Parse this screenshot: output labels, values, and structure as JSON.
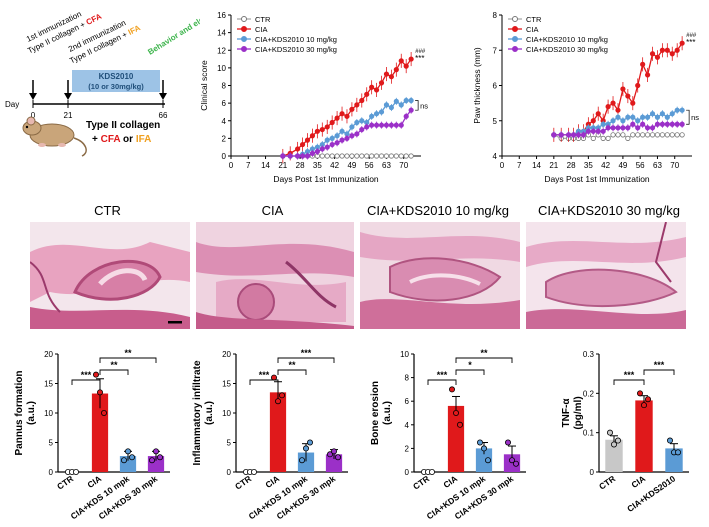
{
  "timeline": {
    "imm1": "1st immunization",
    "imm1_detail": "Type II collagen + ",
    "cfa": "CFA",
    "imm2": "2nd immunization",
    "imm2_detail": "Type II collagen + ",
    "ifa": "IFA",
    "behavior": "Behavior and electrophysiology",
    "drug": "KDS2010",
    "drug_dose": "(10 or 30mg/kg)",
    "day_label": "Day",
    "days": [
      "0",
      "21",
      "66"
    ],
    "mouse_text": "Type II collagen",
    "plus1": "+ ",
    "or_text": " or ",
    "cfa2": "CFA",
    "ifa2": "IFA"
  },
  "histology": {
    "titles": [
      "CTR",
      "CIA",
      "CIA+KDS2010 10 mg/kg",
      "CIA+KDS2010 30 mg/kg"
    ]
  },
  "colors": {
    "ctr": "#aaaaaa",
    "cia": "#e0191b",
    "kds10": "#5b9bd5",
    "kds30": "#9b30c8",
    "cfa": "#e0191b",
    "ifa": "#f0a020",
    "behavior": "#3cb44b",
    "drug_bg": "#9dc3e6"
  },
  "chart_data": [
    {
      "type": "line",
      "ylabel": "Clinical score",
      "xlabel": "Days Post 1st Immunization",
      "xticks": [
        0,
        7,
        14,
        21,
        28,
        35,
        42,
        49,
        56,
        63,
        70
      ],
      "yticks": [
        0,
        2,
        4,
        6,
        8,
        10,
        12,
        14,
        16
      ],
      "xlim": [
        0,
        77
      ],
      "ylim": [
        0,
        16
      ],
      "x": [
        21,
        24,
        27,
        29,
        31,
        33,
        35,
        37,
        39,
        41,
        43,
        45,
        47,
        49,
        51,
        53,
        55,
        57,
        59,
        61,
        63,
        65,
        67,
        69,
        71,
        73
      ],
      "series": [
        {
          "name": "CTR",
          "values": [
            0,
            0,
            0,
            0,
            0,
            0,
            0,
            0,
            0,
            0,
            0,
            0,
            0,
            0,
            0,
            0,
            0,
            0,
            0,
            0,
            0,
            0,
            0,
            0,
            0,
            0
          ]
        },
        {
          "name": "CIA",
          "values": [
            0,
            0.3,
            0.8,
            1.3,
            1.8,
            2.3,
            2.8,
            3.0,
            3.3,
            3.8,
            4.3,
            4.8,
            4.5,
            5.3,
            5.8,
            6.3,
            7.0,
            7.8,
            7.5,
            8.3,
            9.3,
            9.0,
            9.8,
            10.8,
            10.2,
            11.0
          ]
        },
        {
          "name": "CIA+KDS2010 10 mg/kg",
          "values": [
            0,
            0,
            0,
            0.2,
            0.5,
            0.8,
            1.0,
            1.3,
            1.8,
            2.0,
            2.3,
            2.8,
            2.5,
            3.3,
            3.8,
            4.0,
            3.8,
            4.5,
            4.8,
            5.0,
            5.8,
            5.5,
            6.2,
            5.8,
            6.3,
            6.3
          ]
        },
        {
          "name": "CIA+KDS2010 30 mg/kg",
          "values": [
            0,
            0,
            0,
            0,
            0,
            0.3,
            0.5,
            0.8,
            1.0,
            1.3,
            1.5,
            1.8,
            2.0,
            2.3,
            2.5,
            3.0,
            3.3,
            3.5,
            3.5,
            3.5,
            3.5,
            3.5,
            3.5,
            3.5,
            4.5,
            5.2
          ]
        }
      ],
      "sig_top": "###",
      "sig_bottom": "***",
      "ns": "ns"
    },
    {
      "type": "line",
      "ylabel": "Paw thickness (mm)",
      "xlabel": "Days Post 1st Immunization",
      "xticks": [
        0,
        7,
        14,
        21,
        28,
        35,
        42,
        49,
        56,
        63,
        70
      ],
      "yticks": [
        4,
        5,
        6,
        7,
        8
      ],
      "xlim": [
        0,
        77
      ],
      "ylim": [
        4,
        8
      ],
      "x": [
        21,
        24,
        27,
        29,
        31,
        33,
        35,
        37,
        39,
        41,
        43,
        45,
        47,
        49,
        51,
        53,
        55,
        57,
        59,
        61,
        63,
        65,
        67,
        69,
        71,
        73
      ],
      "series": [
        {
          "name": "CTR",
          "values": [
            4.6,
            4.5,
            4.5,
            4.5,
            4.5,
            4.5,
            4.6,
            4.5,
            4.6,
            4.5,
            4.5,
            4.6,
            4.6,
            4.6,
            4.5,
            4.6,
            4.6,
            4.6,
            4.6,
            4.6,
            4.6,
            4.6,
            4.6,
            4.6,
            4.6,
            4.6
          ]
        },
        {
          "name": "CIA",
          "values": [
            4.6,
            4.6,
            4.6,
            4.6,
            4.7,
            4.7,
            4.9,
            5.0,
            5.2,
            5.0,
            5.4,
            5.5,
            5.3,
            5.9,
            5.7,
            5.5,
            6.0,
            6.6,
            6.3,
            6.9,
            6.8,
            7.0,
            7.0,
            6.9,
            7.0,
            7.2
          ]
        },
        {
          "name": "CIA+KDS2010 10 mg/kg",
          "values": [
            4.6,
            4.6,
            4.6,
            4.6,
            4.7,
            4.7,
            4.8,
            4.8,
            4.8,
            4.9,
            4.9,
            5.0,
            5.1,
            5.0,
            5.1,
            5.1,
            5.0,
            5.1,
            5.1,
            5.2,
            5.1,
            5.2,
            5.1,
            5.2,
            5.3,
            5.3
          ]
        },
        {
          "name": "CIA+KDS2010 30 mg/kg",
          "values": [
            4.6,
            4.6,
            4.6,
            4.6,
            4.6,
            4.6,
            4.7,
            4.7,
            4.7,
            4.7,
            4.8,
            4.8,
            4.8,
            4.8,
            4.8,
            4.9,
            4.8,
            4.9,
            4.8,
            4.8,
            4.9,
            4.9,
            4.9,
            4.9,
            4.9,
            4.9
          ]
        }
      ],
      "sig_top": "###",
      "sig_bottom": "***",
      "ns": "ns"
    },
    {
      "type": "bar",
      "ylabel": "Pannus formation (a.u.)",
      "categories": [
        "CTR",
        "CIA",
        "CIA+KDS 10 mpk",
        "CIA+KDS 30 mpk"
      ],
      "values": [
        0,
        13.3,
        2.7,
        2.7
      ],
      "errors": [
        0,
        2.5,
        0.8,
        0.8
      ],
      "points": [
        [
          0,
          0,
          0
        ],
        [
          16.5,
          13.5,
          10
        ],
        [
          2,
          3.5,
          2.5
        ],
        [
          2,
          3.5,
          2.5
        ]
      ],
      "yticks": [
        0,
        5,
        10,
        15,
        20
      ],
      "ylim": [
        0,
        20
      ],
      "brackets": [
        {
          "from": 0,
          "to": 1,
          "label": "***"
        },
        {
          "from": 1,
          "to": 2,
          "label": "**"
        },
        {
          "from": 1,
          "to": 3,
          "label": "**"
        }
      ]
    },
    {
      "type": "bar",
      "ylabel": "Inflammatory infiltrate (a.u.)",
      "categories": [
        "CTR",
        "CIA",
        "CIA+KDS 10 mpk",
        "CIA+KDS 30 mpk"
      ],
      "values": [
        0,
        13.5,
        3.3,
        3.0
      ],
      "errors": [
        0,
        1.8,
        1.5,
        0.8
      ],
      "points": [
        [
          0,
          0,
          0
        ],
        [
          16,
          12,
          13
        ],
        [
          2,
          4,
          5
        ],
        [
          3,
          3.5,
          2.5
        ]
      ],
      "yticks": [
        0,
        5,
        10,
        15,
        20
      ],
      "ylim": [
        0,
        20
      ],
      "brackets": [
        {
          "from": 0,
          "to": 1,
          "label": "***"
        },
        {
          "from": 1,
          "to": 2,
          "label": "**"
        },
        {
          "from": 1,
          "to": 3,
          "label": "***"
        }
      ]
    },
    {
      "type": "bar",
      "ylabel": "Bone erosion (a.u.)",
      "categories": [
        "CTR",
        "CIA",
        "CIA+KDS 10 mpk",
        "CIA+KDS 30 mpk"
      ],
      "values": [
        0,
        5.6,
        2.0,
        1.5
      ],
      "errors": [
        0,
        0.8,
        0.5,
        0.7
      ],
      "points": [
        [
          0,
          0,
          0
        ],
        [
          7,
          5,
          4
        ],
        [
          2.5,
          2,
          1
        ],
        [
          2.5,
          1,
          0.7
        ]
      ],
      "yticks": [
        0,
        2,
        4,
        6,
        8,
        10
      ],
      "ylim": [
        0,
        10
      ],
      "brackets": [
        {
          "from": 0,
          "to": 1,
          "label": "***"
        },
        {
          "from": 1,
          "to": 2,
          "label": "*"
        },
        {
          "from": 1,
          "to": 3,
          "label": "**"
        }
      ]
    },
    {
      "type": "bar",
      "ylabel": "TNF-α (pg/ml)",
      "categories": [
        "CTR",
        "CIA",
        "CIA+KDS2010"
      ],
      "values": [
        0.082,
        0.182,
        0.06
      ],
      "errors": [
        0.01,
        0.012,
        0.012
      ],
      "points": [
        [
          0.1,
          0.07,
          0.08
        ],
        [
          0.2,
          0.17,
          0.185
        ],
        [
          0.08,
          0.05,
          0.05
        ]
      ],
      "yticks": [
        0.0,
        0.1,
        0.2,
        0.3
      ],
      "ylim": [
        0,
        0.3
      ],
      "brackets": [
        {
          "from": 0,
          "to": 1,
          "label": "***"
        },
        {
          "from": 1,
          "to": 2,
          "label": "***"
        }
      ]
    }
  ]
}
